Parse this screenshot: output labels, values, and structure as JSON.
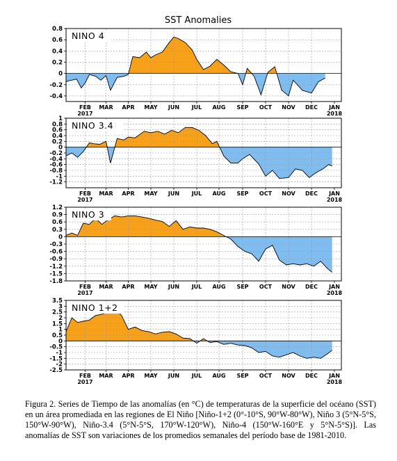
{
  "figure": {
    "title": "SST Anomalies",
    "colors": {
      "positive": "#f7a11a",
      "negative": "#7fbdf0",
      "line": "#000000",
      "grid": "#9a9a9a"
    },
    "month_labels": [
      "FEB",
      "MAR",
      "APR",
      "MAY",
      "JUN",
      "JUL",
      "AUG",
      "SEP",
      "OCT",
      "NOV",
      "DEC",
      "JAN"
    ],
    "year_labels": {
      "start": "2017",
      "end": "2018"
    }
  },
  "chart_data": [
    {
      "type": "area",
      "title": "NINO 4",
      "ylim": [
        -0.5,
        0.8
      ],
      "yticks": [
        -0.4,
        -0.2,
        0,
        0.2,
        0.4,
        0.6,
        0.8
      ],
      "ytick_labels": [
        "-0.4",
        "-0.2",
        "0",
        "0.2",
        "0.4",
        "0.6",
        "0.8"
      ],
      "x_months": [
        0,
        0.15,
        0.3,
        0.55,
        0.8,
        1.0,
        1.2,
        1.5,
        1.75,
        2.0,
        2.2,
        2.5,
        2.8,
        3.0,
        3.2,
        3.5,
        3.8,
        4.0,
        4.2,
        4.5,
        4.8,
        5.0,
        5.2,
        5.5,
        5.8,
        6.0,
        6.3,
        6.6,
        6.9,
        7.2,
        7.5,
        7.8,
        8.0,
        8.2,
        8.5,
        8.8,
        9.1,
        9.4,
        9.7,
        10.0,
        10.2,
        10.6,
        11.0,
        11.3,
        11.6
      ],
      "values": [
        -0.15,
        -0.13,
        -0.12,
        -0.1,
        -0.26,
        -0.17,
        -0.02,
        -0.05,
        -0.12,
        -0.04,
        -0.3,
        -0.07,
        -0.05,
        -0.02,
        0.3,
        0.28,
        0.38,
        0.28,
        0.33,
        0.38,
        0.55,
        0.65,
        0.62,
        0.55,
        0.42,
        0.25,
        0.07,
        0.13,
        0.25,
        0.15,
        0.03,
        0.0,
        -0.2,
        0.09,
        -0.05,
        -0.38,
        0.02,
        0.12,
        -0.3,
        -0.4,
        -0.12,
        -0.3,
        -0.35,
        -0.15,
        -0.08
      ]
    },
    {
      "type": "area",
      "title": "NINO 3.4",
      "ylim": [
        -1.4,
        1.0
      ],
      "yticks": [
        -1.2,
        -1.0,
        -0.8,
        -0.6,
        -0.4,
        -0.2,
        0,
        0.2,
        0.4,
        0.6,
        0.8,
        1.0
      ],
      "ytick_labels": [
        "-1.2",
        "-1",
        "-0.8",
        "-0.6",
        "-0.4",
        "-0.2",
        "0",
        "0.2",
        "0.4",
        "0.6",
        "0.8",
        "1"
      ],
      "x_months": [
        0,
        0.3,
        0.6,
        0.9,
        1.2,
        1.4,
        1.7,
        2.0,
        2.2,
        2.5,
        2.8,
        3.0,
        3.3,
        3.7,
        4.0,
        4.3,
        4.6,
        4.9,
        5.2,
        5.5,
        5.8,
        6.1,
        6.4,
        6.7,
        6.9,
        7.2,
        7.5,
        7.8,
        8.0,
        8.3,
        8.7,
        9.0,
        9.3,
        9.6,
        10.0,
        10.3,
        10.6,
        10.9,
        11.2,
        11.5,
        11.75,
        11.9
      ],
      "values": [
        -0.3,
        -0.2,
        -0.35,
        -0.15,
        0.15,
        0.12,
        0.1,
        0.2,
        -0.55,
        0.3,
        0.25,
        0.35,
        0.32,
        0.55,
        0.5,
        0.55,
        0.45,
        0.58,
        0.5,
        0.68,
        0.68,
        0.58,
        0.4,
        0.12,
        0.2,
        -0.3,
        -0.55,
        -0.55,
        -0.4,
        -0.25,
        -0.58,
        -1.0,
        -0.8,
        -1.08,
        -1.05,
        -0.75,
        -0.8,
        -1.05,
        -0.88,
        -0.75,
        -0.6,
        -0.65
      ]
    },
    {
      "type": "area",
      "title": "NINO 3",
      "ylim": [
        -1.8,
        1.2
      ],
      "yticks": [
        -1.8,
        -1.5,
        -1.2,
        -0.9,
        -0.6,
        -0.3,
        0,
        0.3,
        0.6,
        0.9,
        1.2
      ],
      "ytick_labels": [
        "-1.8",
        "-1.5",
        "-1.2",
        "-0.9",
        "-0.6",
        "-0.3",
        "0",
        "0.3",
        "0.6",
        "0.9",
        "1.2"
      ],
      "x_months": [
        0,
        0.3,
        0.6,
        0.9,
        1.2,
        1.5,
        1.8,
        2.1,
        2.4,
        2.7,
        3.0,
        3.3,
        3.6,
        3.9,
        4.2,
        4.5,
        4.8,
        5.1,
        5.4,
        5.7,
        6.0,
        6.3,
        6.6,
        6.9,
        7.2,
        7.5,
        7.8,
        8.1,
        8.4,
        8.7,
        9.0,
        9.3,
        9.6,
        9.9,
        10.2,
        10.5,
        10.8,
        11.1,
        11.4,
        11.7,
        11.9
      ],
      "values": [
        0.05,
        0.15,
        0.05,
        0.55,
        0.5,
        0.75,
        0.5,
        0.7,
        0.85,
        0.8,
        0.85,
        0.85,
        0.8,
        0.75,
        0.68,
        0.62,
        0.42,
        0.65,
        0.3,
        0.4,
        0.35,
        0.35,
        0.3,
        0.2,
        0.05,
        -0.1,
        -0.4,
        -0.6,
        -0.7,
        -1.0,
        -0.5,
        -0.35,
        -0.95,
        -1.15,
        -1.1,
        -1.15,
        -1.1,
        -1.2,
        -1.0,
        -1.3,
        -1.45
      ]
    },
    {
      "type": "area",
      "title": "NINO 1+2",
      "ylim": [
        -2.5,
        3.5
      ],
      "yticks": [
        -2.5,
        -2,
        -1.5,
        -1,
        -0.5,
        0,
        0.5,
        1,
        1.5,
        2,
        2.5,
        3,
        3.5
      ],
      "ytick_labels": [
        "-2.5",
        "-2",
        "-1.5",
        "-1",
        "-0.5",
        "0",
        "0.5",
        "1",
        "1.5",
        "2",
        "2.5",
        "3",
        "3.5"
      ],
      "x_months": [
        0,
        0.3,
        0.6,
        0.9,
        1.2,
        1.5,
        1.8,
        2.1,
        2.4,
        2.7,
        3.0,
        3.3,
        3.6,
        3.9,
        4.2,
        4.5,
        4.8,
        5.1,
        5.4,
        5.7,
        6.0,
        6.3,
        6.6,
        6.9,
        7.2,
        7.5,
        7.8,
        8.1,
        8.4,
        8.7,
        9.0,
        9.3,
        9.6,
        9.9,
        10.2,
        10.5,
        10.8,
        11.1,
        11.4,
        11.7,
        11.9
      ],
      "values": [
        0.8,
        2.0,
        1.6,
        1.7,
        1.8,
        2.2,
        2.3,
        2.5,
        2.8,
        2.2,
        1.0,
        1.2,
        0.9,
        0.8,
        0.6,
        0.75,
        0.8,
        0.6,
        0.25,
        0.2,
        -0.2,
        0.2,
        -0.15,
        -0.05,
        -0.3,
        -0.2,
        -0.35,
        -0.4,
        -0.6,
        -1.0,
        -0.9,
        -1.3,
        -1.4,
        -1.2,
        -1.0,
        -1.3,
        -1.5,
        -1.4,
        -1.5,
        -1.1,
        -0.8
      ]
    }
  ],
  "caption": "Figura 2. Series de Tiempo de las anomalías (en °C) de temperaturas de la superficie del océano (SST) en un área promediada en las regiones de El Niño [Niño-1+2 (0°-10°S, 90°W-80°W), Niño 3 (5°N-5°S, 150°W-90°W), Niño-3.4 (5°N-5°S, 170°W-120°W), Niño-4 (150°W-160°E y 5°N-5°S)]. Las anomalías de SST son variaciones de los promedios semanales del período base de 1981-2010."
}
